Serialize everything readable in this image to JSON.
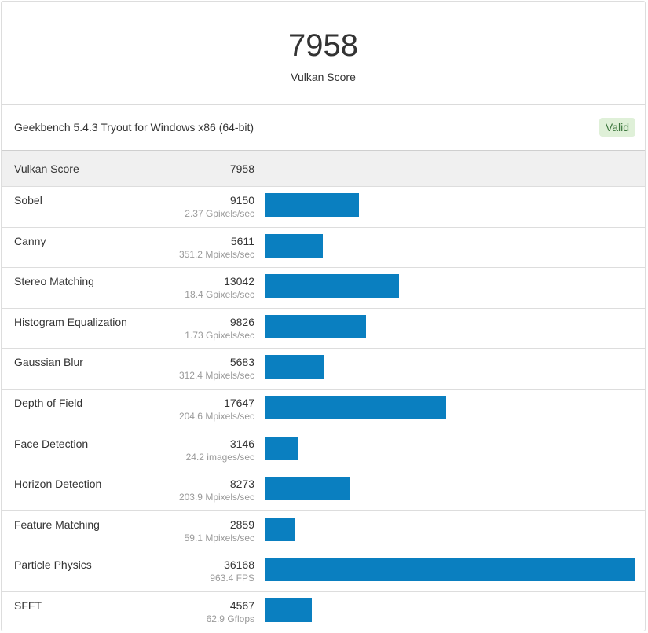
{
  "header": {
    "score": "7958",
    "label": "Vulkan Score"
  },
  "info": {
    "text": "Geekbench 5.4.3 Tryout for Windows x86 (64-bit)",
    "badge": "Valid"
  },
  "summary": {
    "name": "Vulkan Score",
    "score": "7958"
  },
  "colors": {
    "bar": "#0a7fc0",
    "badge_bg": "#dff0d8",
    "badge_text": "#3c763d"
  },
  "chart_data": {
    "type": "bar",
    "categories": [
      "Sobel",
      "Canny",
      "Stereo Matching",
      "Histogram Equalization",
      "Gaussian Blur",
      "Depth of Field",
      "Face Detection",
      "Horizon Detection",
      "Feature Matching",
      "Particle Physics",
      "SFFT"
    ],
    "values": [
      9150,
      5611,
      13042,
      9826,
      5683,
      17647,
      3146,
      8273,
      2859,
      36168,
      4567
    ],
    "units": [
      "2.37 Gpixels/sec",
      "351.2 Mpixels/sec",
      "18.4 Gpixels/sec",
      "1.73 Gpixels/sec",
      "312.4 Mpixels/sec",
      "204.6 Mpixels/sec",
      "24.2 images/sec",
      "203.9 Mpixels/sec",
      "59.1 Mpixels/sec",
      "963.4 FPS",
      "62.9 Gflops"
    ],
    "max": 36168
  },
  "rows": [
    {
      "name": "Sobel",
      "score": "9150",
      "unit": "2.37 Gpixels/sec"
    },
    {
      "name": "Canny",
      "score": "5611",
      "unit": "351.2 Mpixels/sec"
    },
    {
      "name": "Stereo Matching",
      "score": "13042",
      "unit": "18.4 Gpixels/sec"
    },
    {
      "name": "Histogram Equalization",
      "score": "9826",
      "unit": "1.73 Gpixels/sec"
    },
    {
      "name": "Gaussian Blur",
      "score": "5683",
      "unit": "312.4 Mpixels/sec"
    },
    {
      "name": "Depth of Field",
      "score": "17647",
      "unit": "204.6 Mpixels/sec"
    },
    {
      "name": "Face Detection",
      "score": "3146",
      "unit": "24.2 images/sec"
    },
    {
      "name": "Horizon Detection",
      "score": "8273",
      "unit": "203.9 Mpixels/sec"
    },
    {
      "name": "Feature Matching",
      "score": "2859",
      "unit": "59.1 Mpixels/sec"
    },
    {
      "name": "Particle Physics",
      "score": "36168",
      "unit": "963.4 FPS"
    },
    {
      "name": "SFFT",
      "score": "4567",
      "unit": "62.9 Gflops"
    }
  ]
}
